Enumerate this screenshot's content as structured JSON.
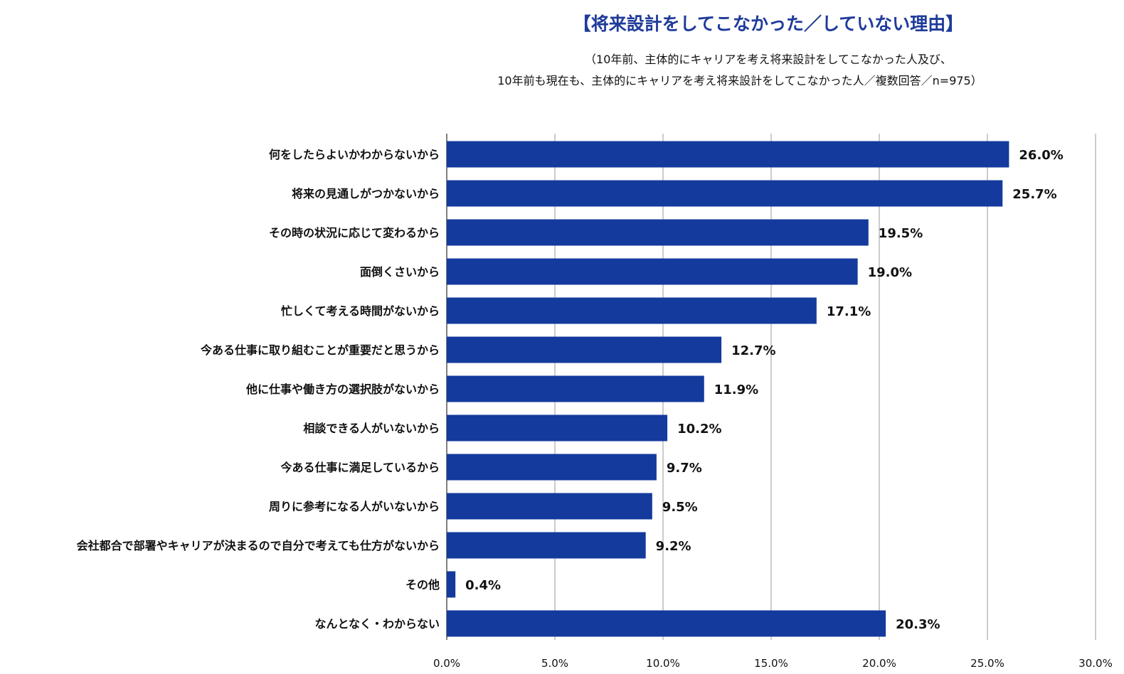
{
  "chart_data": {
    "type": "bar",
    "orientation": "horizontal",
    "title": "【将来設計をしてこなかった／していない理由】",
    "subtitle": [
      "（10年前、主体的にキャリアを考え将来設計をしてこなかった人及び、",
      "10年前も現在も、主体的にキャリアを考え将来設計をしてこなかった人／複数回答／n=975）"
    ],
    "categories": [
      "何をしたらよいかわからないから",
      "将来の見通しがつかないから",
      "その時の状況に応じて変わるから",
      "面倒くさいから",
      "忙しくて考える時間がないから",
      "今ある仕事に取り組むことが重要だと思うから",
      "他に仕事や働き方の選択肢がないから",
      "相談できる人がいないから",
      "今ある仕事に満足しているから",
      "周りに参考になる人がいないから",
      "会社都合で部署やキャリアが決まるので自分で考えても仕方がないから",
      "その他",
      "なんとなく・わからない"
    ],
    "values": [
      26.0,
      25.7,
      19.5,
      19.0,
      17.1,
      12.7,
      11.9,
      10.2,
      9.7,
      9.5,
      9.2,
      0.4,
      20.3
    ],
    "value_labels": [
      "26.0%",
      "25.7%",
      "19.5%",
      "19.0%",
      "17.1%",
      "12.7%",
      "11.9%",
      "10.2%",
      "9.7%",
      "9.5%",
      "9.2%",
      "0.4%",
      "20.3%"
    ],
    "xlim": [
      0,
      30
    ],
    "xticks": [
      0,
      5,
      10,
      15,
      20,
      25,
      30
    ],
    "xtick_labels": [
      "0.0%",
      "5.0%",
      "10.0%",
      "15.0%",
      "20.0%",
      "25.0%",
      "30.0%"
    ],
    "xlabel": "",
    "ylabel": "",
    "grid": true,
    "bar_color": "#133a9c",
    "title_color": "#1f3b9a"
  }
}
